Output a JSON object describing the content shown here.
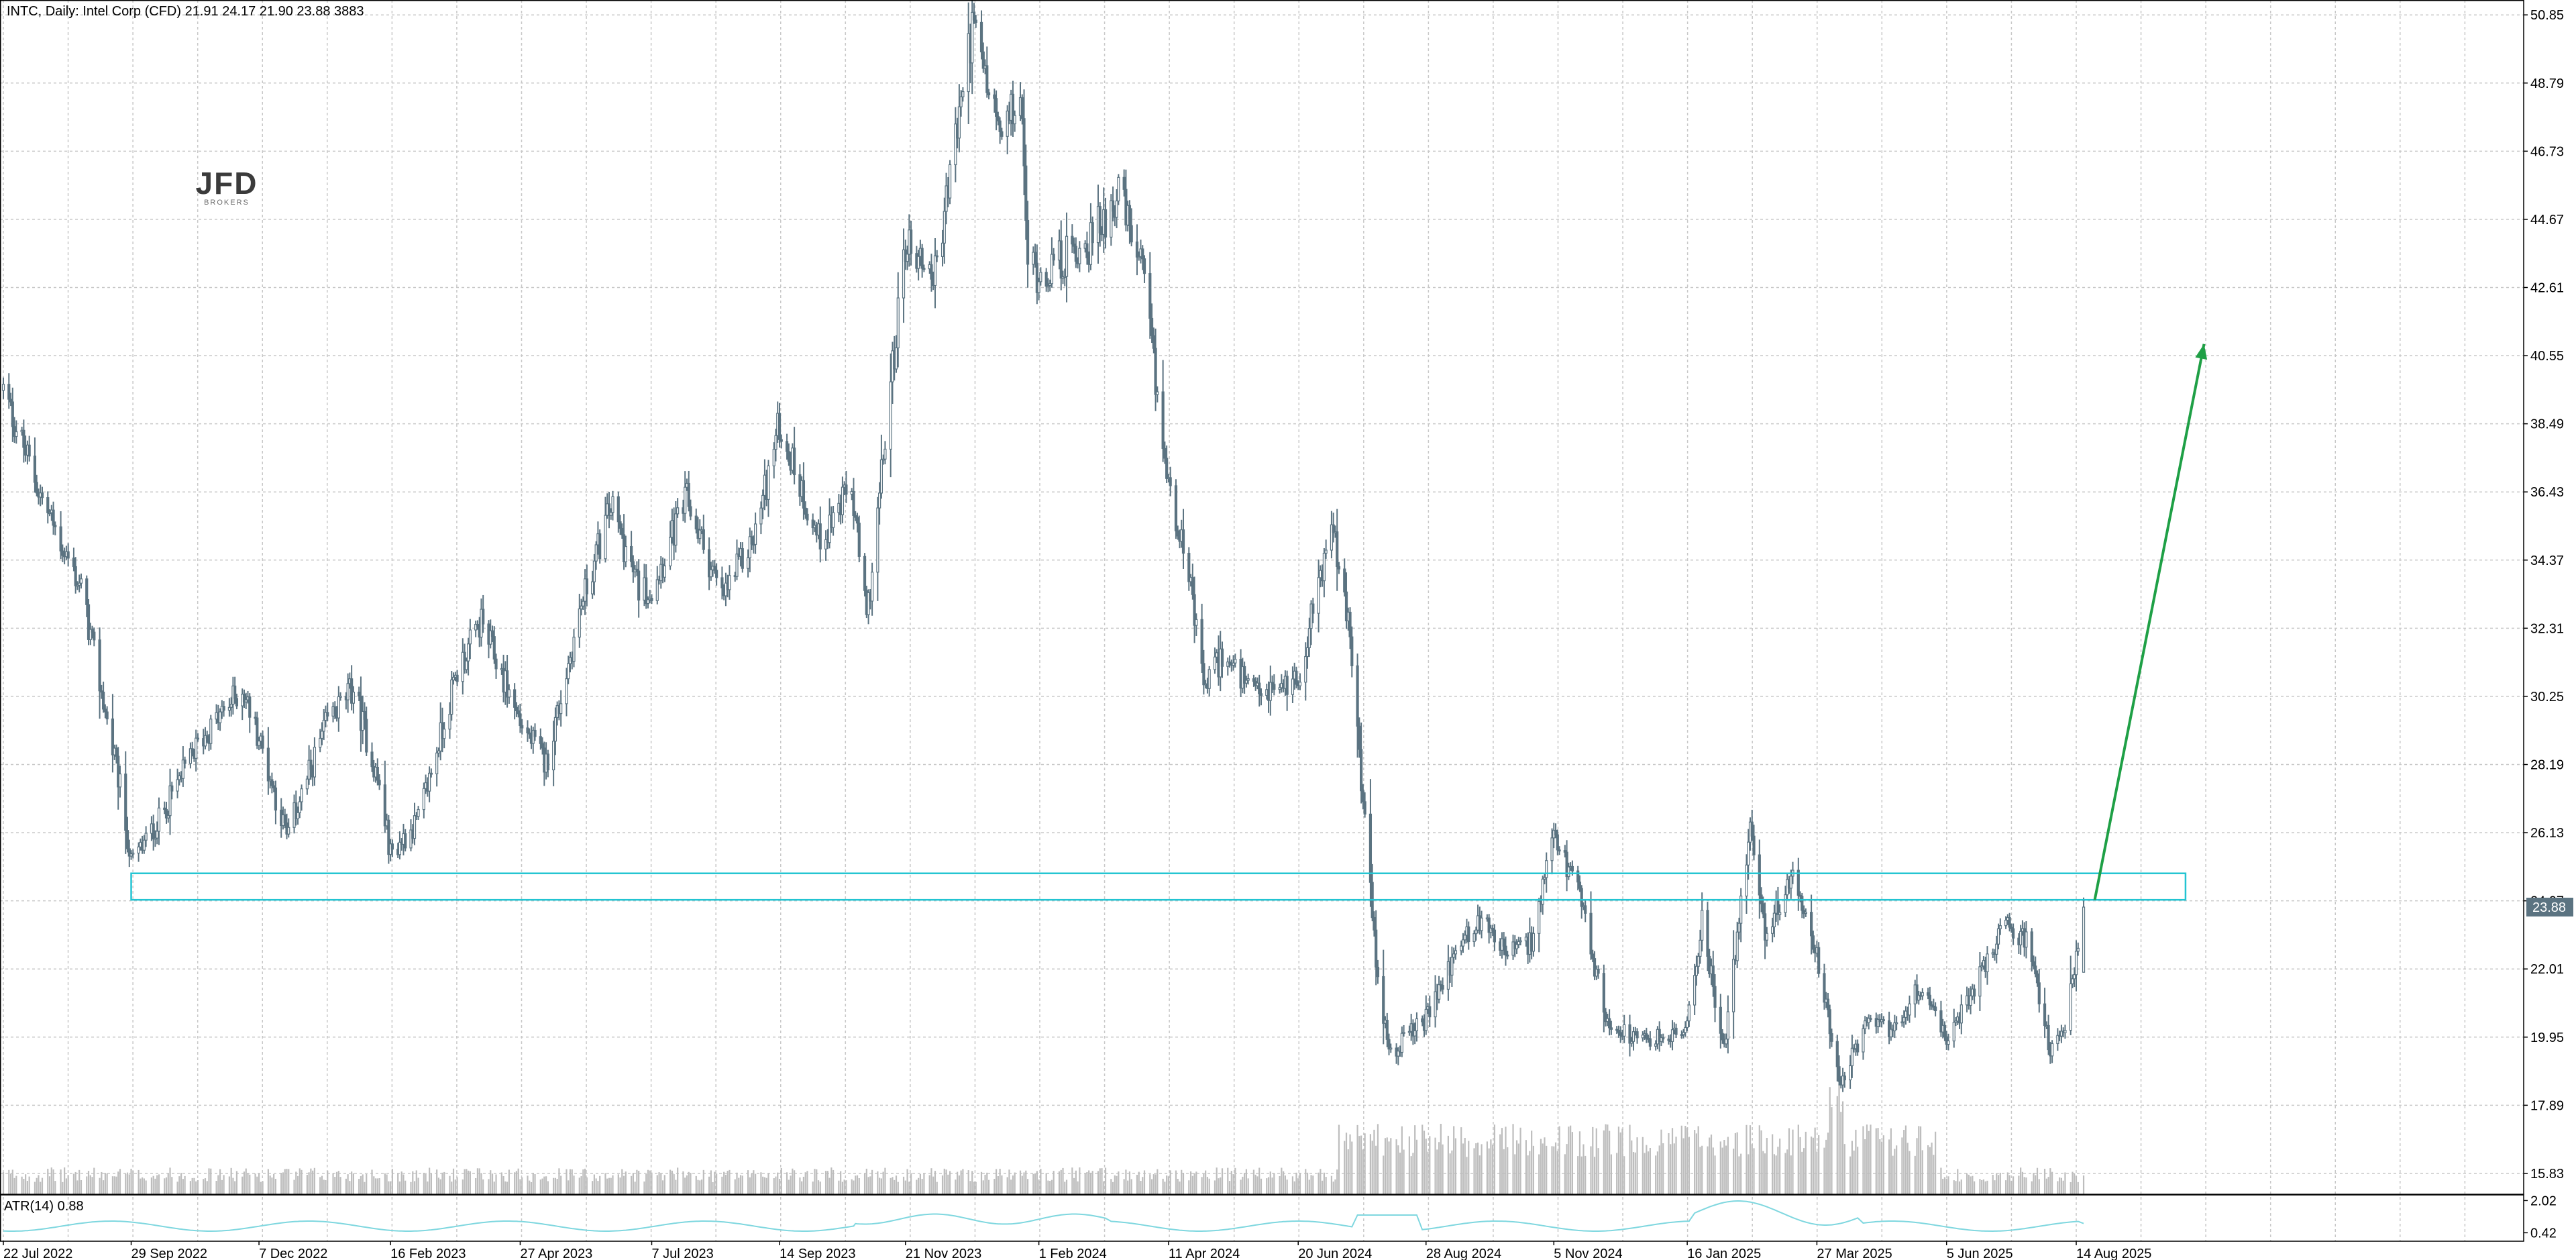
{
  "header": {
    "symbol_line": "INTC, Daily:  Intel Corp (CFD)  21.91 24.17 21.90 23.88  3883"
  },
  "logo": {
    "main": "JFD",
    "sub": "BROKERS"
  },
  "indicator": {
    "label": "ATR(14) 0.88",
    "axis_ticks": [
      "2.02",
      "0.42"
    ]
  },
  "current_price": "23.88",
  "colors": {
    "candle": "#5b7381",
    "grid": "#c8c8c8",
    "zone": "#22c4d2",
    "arrow": "#1fa046",
    "volume": "#bdbdbd",
    "atr": "#7fd7df",
    "price_tag_bg": "#5b7381"
  },
  "chart_data": {
    "type": "candlestick",
    "timeframe": "Daily",
    "instrument": "INTC",
    "last_bar": {
      "open": 21.91,
      "high": 24.17,
      "low": 21.9,
      "close": 23.88,
      "volume": 3883
    },
    "y_ticks": [
      "50.85",
      "48.79",
      "46.73",
      "44.67",
      "42.61",
      "40.55",
      "38.49",
      "36.43",
      "34.37",
      "32.31",
      "30.25",
      "28.19",
      "26.13",
      "24.07",
      "22.01",
      "19.95",
      "17.89",
      "15.83"
    ],
    "ylim": [
      15.2,
      51.3
    ],
    "x_labels": [
      "22 Jul 2022",
      "29 Sep 2022",
      "7 Dec 2022",
      "16 Feb 2023",
      "27 Apr 2023",
      "7 Jul 2023",
      "14 Sep 2023",
      "21 Nov 2023",
      "1 Feb 2024",
      "11 Apr 2024",
      "20 Jun 2024",
      "28 Aug 2024",
      "5 Nov 2024",
      "16 Jan 2025",
      "27 Mar 2025",
      "5 Jun 2025",
      "14 Aug 2025"
    ],
    "price_path": [
      [
        "22 Jul 2022",
        39.5
      ],
      [
        "12 Aug 2022",
        36.2
      ],
      [
        "2 Sep 2022",
        33.5
      ],
      [
        "23 Sep 2022",
        27.5
      ],
      [
        "29 Sep 2022",
        25.2
      ],
      [
        "14 Oct 2022",
        26.5
      ],
      [
        "4 Nov 2022",
        28.8
      ],
      [
        "28 Nov 2022",
        30.5
      ],
      [
        "7 Dec 2022",
        29.0
      ],
      [
        "22 Dec 2022",
        26.0
      ],
      [
        "13 Jan 2023",
        29.5
      ],
      [
        "27 Jan 2023",
        30.5
      ],
      [
        "10 Feb 2023",
        27.5
      ],
      [
        "16 Feb 2023",
        25.5
      ],
      [
        "3 Mar 2023",
        26.5
      ],
      [
        "24 Mar 2023",
        31.0
      ],
      [
        "6 Apr 2023",
        32.5
      ],
      [
        "20 Apr 2023",
        30.5
      ],
      [
        "27 Apr 2023",
        29.5
      ],
      [
        "11 May 2023",
        28.2
      ],
      [
        "30 May 2023",
        33.0
      ],
      [
        "15 Jun 2023",
        36.0
      ],
      [
        "30 Jun 2023",
        33.5
      ],
      [
        "7 Jul 2023",
        33.5
      ],
      [
        "26 Jul 2023",
        36.2
      ],
      [
        "14 Aug 2023",
        33.2
      ],
      [
        "31 Aug 2023",
        35.0
      ],
      [
        "14 Sep 2023",
        38.5
      ],
      [
        "5 Oct 2023",
        35.0
      ],
      [
        "23 Oct 2023",
        36.5
      ],
      [
        "31 Oct 2023",
        32.5
      ],
      [
        "21 Nov 2023",
        44.0
      ],
      [
        "7 Dec 2023",
        43.0
      ],
      [
        "27 Dec 2023",
        50.5
      ],
      [
        "12 Jan 2024",
        47.0
      ],
      [
        "22 Jan 2024",
        48.5
      ],
      [
        "26 Jan 2024",
        43.5
      ],
      [
        "1 Feb 2024",
        43.0
      ],
      [
        "29 Feb 2024",
        44.0
      ],
      [
        "15 Mar 2024",
        45.5
      ],
      [
        "28 Mar 2024",
        43.0
      ],
      [
        "11 Apr 2024",
        36.5
      ],
      [
        "19 Apr 2024",
        35.0
      ],
      [
        "30 Apr 2024",
        30.5
      ],
      [
        "10 May 2024",
        31.5
      ],
      [
        "28 May 2024",
        30.2
      ],
      [
        "20 Jun 2024",
        30.8
      ],
      [
        "8 Jul 2024",
        35.5
      ],
      [
        "18 Jul 2024",
        32.0
      ],
      [
        "2 Aug 2024",
        21.5
      ],
      [
        "9 Aug 2024",
        19.5
      ],
      [
        "28 Aug 2024",
        20.5
      ],
      [
        "17 Sep 2024",
        23.0
      ],
      [
        "30 Sep 2024",
        23.5
      ],
      [
        "10 Oct 2024",
        22.5
      ],
      [
        "24 Oct 2024",
        22.8
      ],
      [
        "5 Nov 2024",
        26.0
      ],
      [
        "19 Nov 2024",
        24.2
      ],
      [
        "3 Dec 2024",
        20.5
      ],
      [
        "20 Dec 2024",
        19.8
      ],
      [
        "7 Jan 2025",
        20.0
      ],
      [
        "16 Jan 2025",
        20.2
      ],
      [
        "24 Jan 2025",
        23.5
      ],
      [
        "5 Feb 2025",
        19.5
      ],
      [
        "19 Feb 2025",
        26.5
      ],
      [
        "27 Feb 2025",
        23.0
      ],
      [
        "13 Mar 2025",
        24.8
      ],
      [
        "27 Mar 2025",
        22.5
      ],
      [
        "8 Apr 2025",
        18.5
      ],
      [
        "24 Apr 2025",
        20.5
      ],
      [
        "7 May 2025",
        20.2
      ],
      [
        "22 May 2025",
        21.5
      ],
      [
        "5 Jun 2025",
        19.8
      ],
      [
        "20 Jun 2025",
        21.5
      ],
      [
        "8 Jul 2025",
        23.5
      ],
      [
        "18 Jul 2025",
        22.8
      ],
      [
        "31 Jul 2025",
        19.6
      ],
      [
        "7 Aug 2025",
        20.0
      ],
      [
        "19 Aug 2025",
        23.88
      ]
    ],
    "annotations": {
      "zone": {
        "start": "29 Sep 2022",
        "end": "12 Oct 2025",
        "low": 24.1,
        "high": 24.9
      },
      "arrow": {
        "from_date": "24 Aug 2025",
        "from_price": 24.1,
        "to_date": "22 Oct 2025",
        "to_price": 40.9
      }
    },
    "atr": {
      "period": 14,
      "value": 0.88,
      "ylim": [
        0,
        2.3
      ]
    }
  }
}
